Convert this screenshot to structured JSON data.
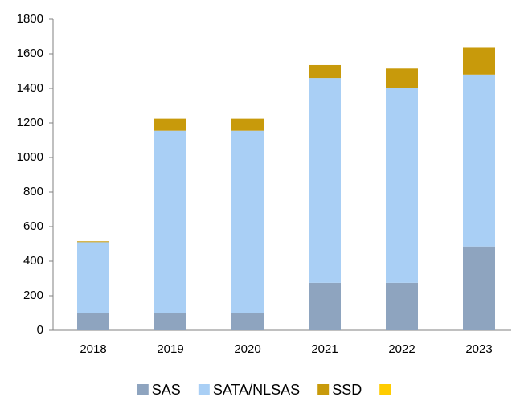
{
  "chart_data": {
    "type": "stacked_bar",
    "categories": [
      "2018",
      "2019",
      "2020",
      "2021",
      "2022",
      "2023"
    ],
    "series": [
      {
        "name": "SAS",
        "color": "#8ea4bf",
        "values": [
          100,
          100,
          100,
          275,
          275,
          485
        ]
      },
      {
        "name": "SATA/NLSAS",
        "color": "#a9cff5",
        "values": [
          410,
          1055,
          1055,
          1185,
          1125,
          995
        ]
      },
      {
        "name": "SSD",
        "color": "#c89a0b",
        "values": [
          5,
          70,
          70,
          75,
          115,
          155
        ]
      },
      {
        "name": null,
        "color": "#ffcc00",
        "values": [
          0,
          0,
          0,
          0,
          0,
          0
        ]
      }
    ],
    "ylim": [
      0,
      1800
    ],
    "yticks": [
      0,
      200,
      400,
      600,
      800,
      1000,
      1200,
      1400,
      1600,
      1800
    ],
    "grid": false,
    "legend": "bottom"
  }
}
